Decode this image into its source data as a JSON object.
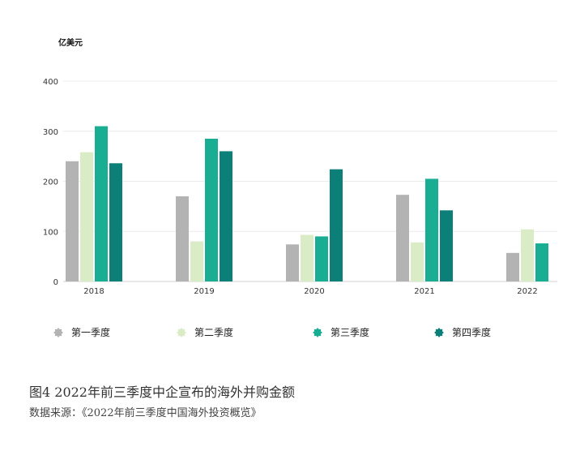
{
  "caption": "图4 2022年前三季度中企宣布的海外并购金额",
  "source": "数据来源：《2022年前三季度中国海外投资概览》",
  "chart_data": {
    "type": "bar",
    "ylabel": "亿美元",
    "ylim": [
      0,
      400
    ],
    "yticks": [
      0,
      100,
      200,
      300,
      400
    ],
    "grid": true,
    "legend_position": "bottom",
    "categories": [
      "2018",
      "2019",
      "2020",
      "2021",
      "2022"
    ],
    "series": [
      {
        "name": "第一季度",
        "color": "#b3b3b3",
        "values": [
          240,
          170,
          74,
          173,
          57
        ]
      },
      {
        "name": "第二季度",
        "color": "#d9ecc6",
        "values": [
          258,
          80,
          93,
          78,
          104
        ]
      },
      {
        "name": "第三季度",
        "color": "#19ad94",
        "values": [
          310,
          285,
          90,
          205,
          76
        ]
      },
      {
        "name": "第四季度",
        "color": "#0b7f78",
        "values": [
          236,
          260,
          224,
          142,
          null
        ]
      }
    ]
  }
}
